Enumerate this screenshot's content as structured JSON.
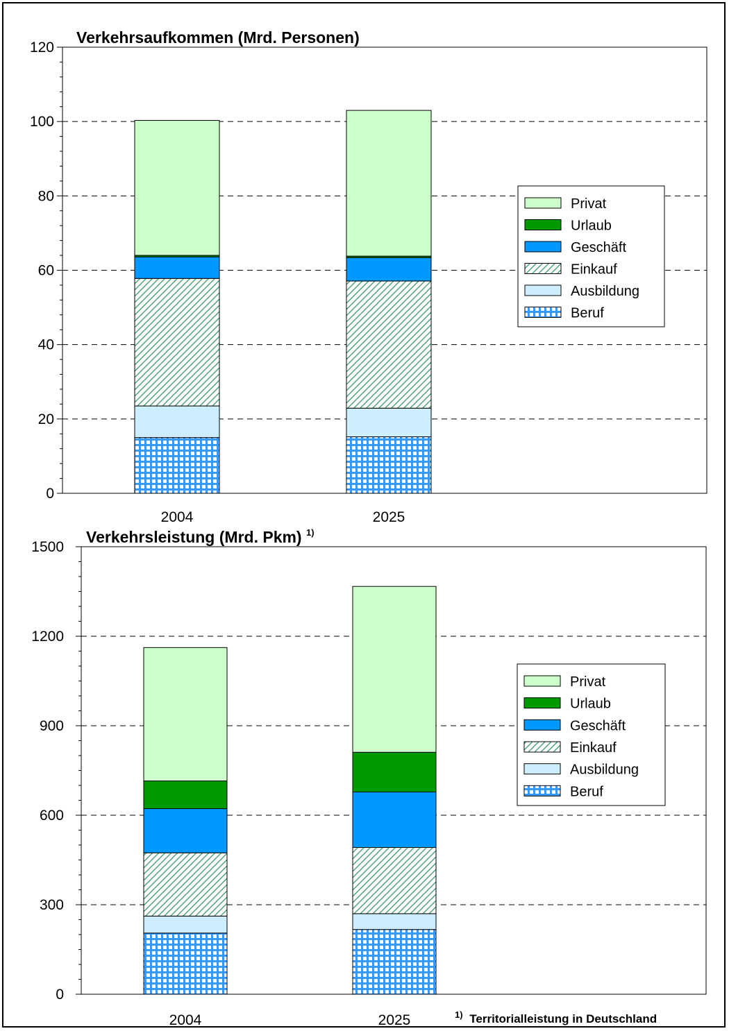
{
  "colors": {
    "Privat": "#ccffcc",
    "Urlaub": "#009900",
    "Geschäft": "#0099ff",
    "Einkauf": "#339966",
    "Ausbildung": "#cceeff",
    "Beruf": "#3399ff"
  },
  "legend": [
    "Privat",
    "Urlaub",
    "Geschäft",
    "Einkauf",
    "Ausbildung",
    "Beruf"
  ],
  "footnote": {
    "mark": "1)",
    "text": "Territorialleistung in Deutschland"
  },
  "chart_data": [
    {
      "type": "bar",
      "stacked": true,
      "title": "Verkehrsaufkommen (Mrd. Personen)",
      "title_sup": "",
      "categories": [
        "2004",
        "2025"
      ],
      "ylim": [
        0,
        120
      ],
      "yticks": [
        0,
        20,
        40,
        60,
        80,
        100,
        120
      ],
      "series": [
        {
          "name": "Beruf",
          "values": [
            15.0,
            15.2
          ]
        },
        {
          "name": "Ausbildung",
          "values": [
            8.5,
            7.7
          ]
        },
        {
          "name": "Einkauf",
          "values": [
            34.3,
            34.2
          ]
        },
        {
          "name": "Geschäft",
          "values": [
            5.8,
            6.3
          ]
        },
        {
          "name": "Urlaub",
          "values": [
            0.4,
            0.4
          ]
        },
        {
          "name": "Privat",
          "values": [
            36.3,
            39.2
          ]
        }
      ],
      "grid": true,
      "legend_position": "right"
    },
    {
      "type": "bar",
      "stacked": true,
      "title": "Verkehrsleistung (Mrd. Pkm)",
      "title_sup": "1)",
      "categories": [
        "2004",
        "2025"
      ],
      "ylim": [
        0,
        1500
      ],
      "yticks": [
        0,
        300,
        600,
        900,
        1200,
        1500
      ],
      "series": [
        {
          "name": "Beruf",
          "values": [
            205,
            217
          ]
        },
        {
          "name": "Ausbildung",
          "values": [
            57,
            53
          ]
        },
        {
          "name": "Einkauf",
          "values": [
            212,
            222
          ]
        },
        {
          "name": "Geschäft",
          "values": [
            148,
            186
          ]
        },
        {
          "name": "Urlaub",
          "values": [
            93,
            133
          ]
        },
        {
          "name": "Privat",
          "values": [
            447,
            556
          ]
        }
      ],
      "grid": true,
      "legend_position": "right"
    }
  ]
}
